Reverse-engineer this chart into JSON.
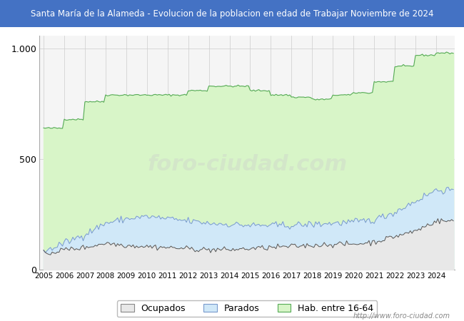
{
  "title": "Santa María de la Alameda - Evolucion de la poblacion en edad de Trabajar Noviembre de 2024",
  "title_color": "#ffffff",
  "title_bg_color": "#4472c4",
  "hab_color": "#d8f5c8",
  "hab_line_color": "#55aa55",
  "parados_color": "#d0e8f8",
  "parados_line_color": "#7799cc",
  "ocupados_color": "#e8e8e8",
  "ocupados_line_color": "#555555",
  "ylim": [
    0,
    1060
  ],
  "yticks": [
    0,
    500,
    1000
  ],
  "ytick_labels": [
    "0",
    "500",
    "1.000"
  ],
  "footer_text": "http://www.foro-ciudad.com",
  "legend_labels": [
    "Ocupados",
    "Parados",
    "Hab. entre 16-64"
  ],
  "bg_color": "#f0f0f0",
  "plot_bg_color": "#f5f5f5"
}
